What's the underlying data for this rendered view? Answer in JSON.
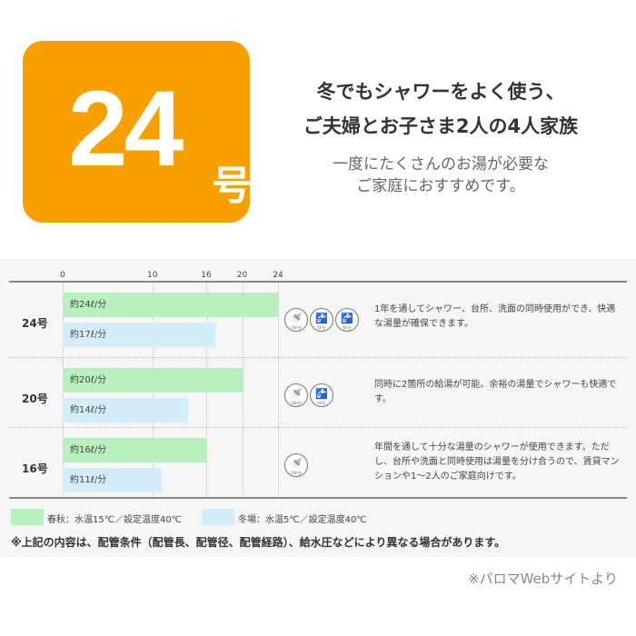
{
  "badge": {
    "number": "24",
    "unit": "号",
    "color": "#f7a000"
  },
  "headline": [
    "冬でもシャワーをよく使う、",
    "ご夫婦とお子さま2人の4人家族"
  ],
  "subline": [
    "一度にたくさんのお湯が必要な",
    "ご家庭におすすめです。"
  ],
  "chart_data": {
    "type": "bar",
    "orientation": "horizontal",
    "xticks": [
      0,
      10,
      16,
      20,
      24
    ],
    "xlim": [
      0,
      24
    ],
    "categories": [
      "24号",
      "20号",
      "16号"
    ],
    "series": [
      {
        "name": "春秋：水温15℃／設定温度40℃",
        "color": "#b9f0c0",
        "values": [
          24,
          20,
          16
        ],
        "labels": [
          "約24ℓ/分",
          "約20ℓ/分",
          "約16ℓ/分"
        ]
      },
      {
        "name": "冬場：水温5℃／設定温度40℃",
        "color": "#d3eef9",
        "values": [
          17,
          14,
          11
        ],
        "labels": [
          "約17ℓ/分",
          "約14ℓ/分",
          "約11ℓ/分"
        ]
      }
    ]
  },
  "rows": [
    {
      "icons": [
        {
          "name": "shower",
          "label": "10ℓ/分"
        },
        {
          "name": "faucet",
          "label": "4ℓ/分"
        },
        {
          "name": "faucet",
          "label": "4ℓ/分"
        }
      ],
      "desc": "1年を通してシャワー、台所、洗面の同時使用ができ、快適な湯量が確保できます。"
    },
    {
      "icons": [
        {
          "name": "shower",
          "label": "10ℓ/分"
        },
        {
          "name": "faucet",
          "label": "4ℓ/分"
        }
      ],
      "desc": "同時に2箇所の給湯が可能。余裕の湯量でシャワーも快適です。"
    },
    {
      "icons": [
        {
          "name": "shower",
          "label": "10ℓ/分"
        }
      ],
      "desc": "年間を通して十分な湯量のシャワーが使用できます。ただし、台所や洗面と同時使用は湯量を分け合うので、賃貸マンションや1〜2人のご家庭向けです。"
    }
  ],
  "note": "※上記の内容は、配管条件（配管長、配管径、配管経路）、給水圧などにより異なる場合があります。",
  "source": "※パロマWebサイトより"
}
